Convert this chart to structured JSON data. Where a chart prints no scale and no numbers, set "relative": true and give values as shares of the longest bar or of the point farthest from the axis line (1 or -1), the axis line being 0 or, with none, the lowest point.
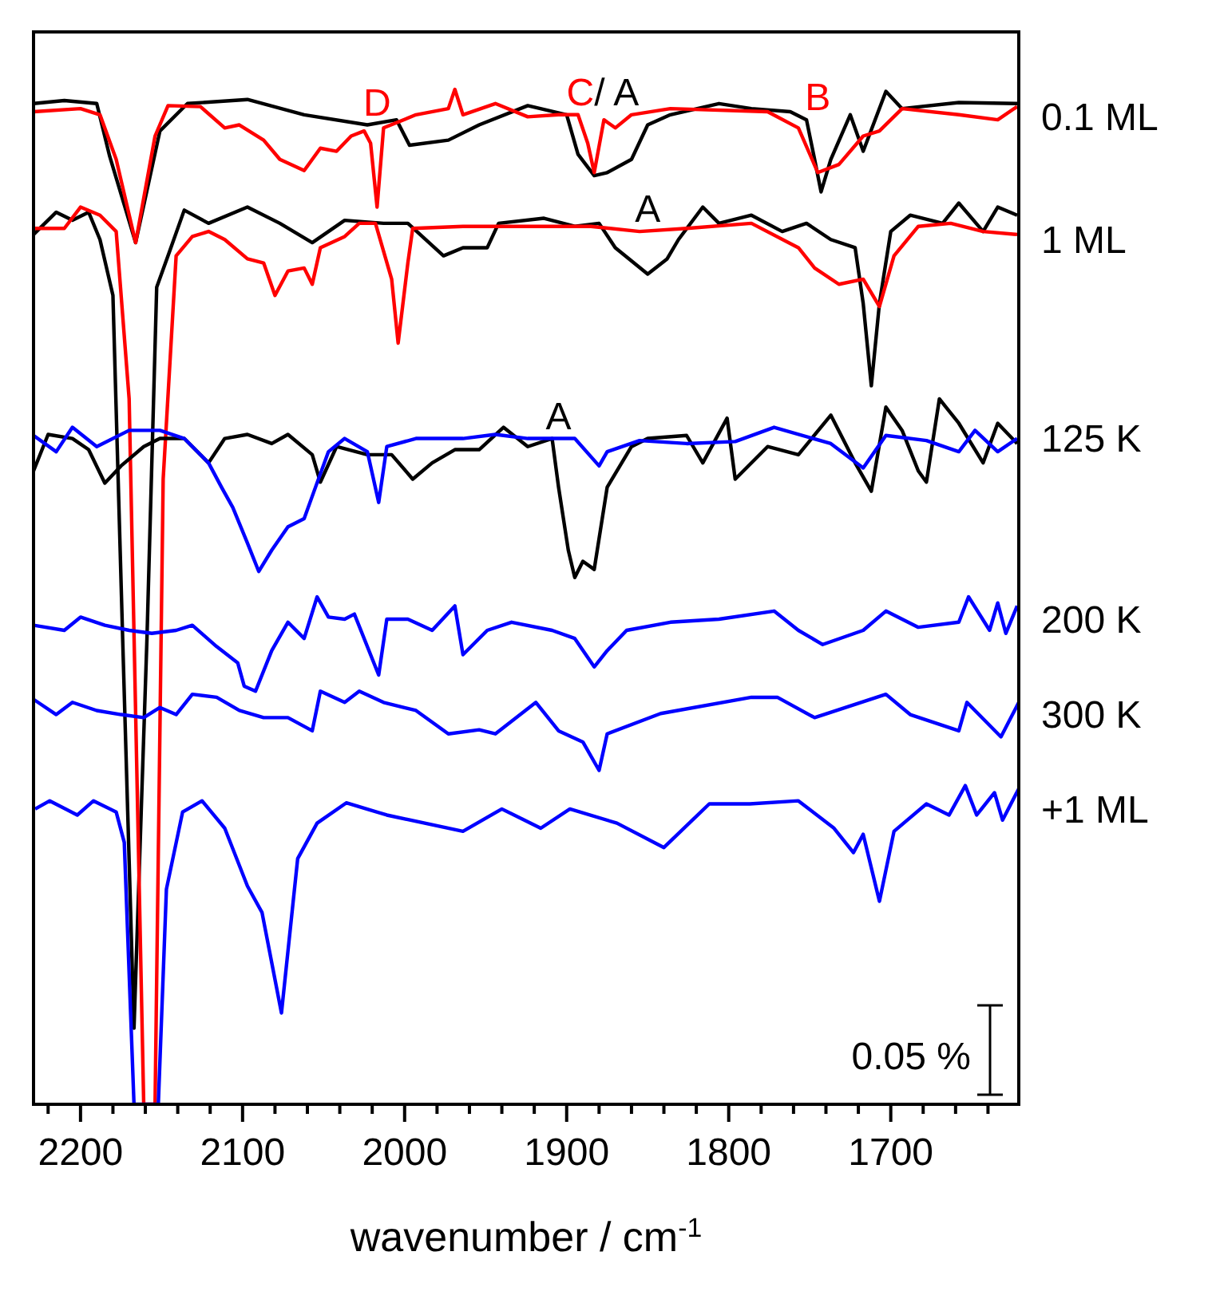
{
  "chart_data": {
    "type": "line",
    "relative": true,
    "xlabel": "wavenumber / cm$^{-1}$",
    "xlim": [
      2229,
      1621
    ],
    "xticks": [
      {
        "value": 2220,
        "label": null
      },
      2200,
      {
        "value": 2180,
        "label": null
      },
      {
        "value": 2160,
        "label": null
      },
      {
        "value": 2140,
        "label": null
      },
      {
        "value": 2120,
        "label": null
      },
      2100,
      {
        "value": 2080,
        "label": null
      },
      {
        "value": 2060,
        "label": null
      },
      {
        "value": 2040,
        "label": null
      },
      {
        "value": 2020,
        "label": null
      },
      2000,
      {
        "value": 1980,
        "label": null
      },
      {
        "value": 1960,
        "label": null
      },
      {
        "value": 1940,
        "label": null
      },
      {
        "value": 1920,
        "label": null
      },
      1900,
      {
        "value": 1880,
        "label": null
      },
      {
        "value": 1860,
        "label": null
      },
      {
        "value": 1840,
        "label": null
      },
      {
        "value": 1820,
        "label": null
      },
      1800,
      {
        "value": 1780,
        "label": null
      },
      {
        "value": 1760,
        "label": null
      },
      {
        "value": 1740,
        "label": null
      },
      {
        "value": 1720,
        "label": null
      },
      1700,
      {
        "value": 1680,
        "label": null
      },
      {
        "value": 1660,
        "label": null
      },
      {
        "value": 1640,
        "label": null
      }
    ],
    "grid": false,
    "line_style": "solid",
    "series": [
      {
        "color": "#000000",
        "x": [
          2229,
          2210,
          2190,
          2182,
          2166,
          2151,
          2134,
          2097,
          2062,
          2023,
          2005,
          1997,
          1973,
          1954,
          1924,
          1900,
          1893,
          1883,
          1875,
          1860,
          1850,
          1836,
          1806,
          1786,
          1762,
          1752,
          1747,
          1743,
          1737,
          1725,
          1717,
          1703,
          1693,
          1658,
          1622
        ],
        "values": [
          0.986,
          0.989,
          0.986,
          0.934,
          0.849,
          0.959,
          0.986,
          0.99,
          0.975,
          0.965,
          0.97,
          0.945,
          0.95,
          0.965,
          0.984,
          0.975,
          0.936,
          0.915,
          0.918,
          0.931,
          0.965,
          0.975,
          0.986,
          0.981,
          0.978,
          0.97,
          0.931,
          0.899,
          0.931,
          0.975,
          0.939,
          0.998,
          0.981,
          0.987,
          0.986
        ]
      },
      {
        "color": "#ff0000",
        "x": [
          2229,
          2200,
          2188,
          2178,
          2166,
          2154,
          2146,
          2126,
          2111,
          2102,
          2087,
          2077,
          2062,
          2052,
          2042,
          2033,
          2025,
          2021,
          2017,
          2013,
          1993,
          1973,
          1969,
          1964,
          1944,
          1924,
          1905,
          1893,
          1887,
          1883,
          1877,
          1870,
          1860,
          1836,
          1776,
          1757,
          1745,
          1732,
          1717,
          1707,
          1693,
          1658,
          1634,
          1622
        ],
        "values": [
          0.978,
          0.981,
          0.975,
          0.931,
          0.849,
          0.954,
          0.984,
          0.983,
          0.962,
          0.965,
          0.95,
          0.931,
          0.92,
          0.942,
          0.939,
          0.954,
          0.959,
          0.947,
          0.884,
          0.962,
          0.975,
          0.981,
          1,
          0.975,
          0.986,
          0.973,
          0.975,
          0.975,
          0.947,
          0.918,
          0.97,
          0.962,
          0.975,
          0.981,
          0.978,
          0.962,
          0.918,
          0.926,
          0.954,
          0.959,
          0.981,
          0.975,
          0.97,
          0.983
        ]
      },
      {
        "color": "#000000",
        "x": [
          2229,
          2215,
          2205,
          2195,
          2188,
          2180,
          2174,
          2167,
          2159,
          2153,
          2146,
          2136,
          2121,
          2097,
          2077,
          2057,
          2037,
          2013,
          1998,
          1976,
          1964,
          1949,
          1942,
          1914,
          1895,
          1880,
          1870,
          1850,
          1838,
          1831,
          1816,
          1806,
          1786,
          1767,
          1752,
          1737,
          1722,
          1717,
          1712,
          1707,
          1700,
          1688,
          1668,
          1658,
          1643,
          1634,
          1622
        ],
        "values": [
          0.857,
          0.879,
          0.871,
          0.879,
          0.852,
          0.797,
          0.459,
          0.075,
          0.459,
          0.805,
          0.836,
          0.881,
          0.868,
          0.884,
          0.868,
          0.849,
          0.871,
          0.868,
          0.868,
          0.836,
          0.844,
          0.844,
          0.868,
          0.873,
          0.865,
          0.868,
          0.844,
          0.818,
          0.833,
          0.852,
          0.884,
          0.868,
          0.876,
          0.86,
          0.868,
          0.852,
          0.844,
          0.789,
          0.708,
          0.789,
          0.86,
          0.876,
          0.868,
          0.888,
          0.86,
          0.884,
          0.876
        ]
      },
      {
        "color": "#ff0000",
        "x": [
          2229,
          2210,
          2200,
          2188,
          2178,
          2170,
          2161,
          2154,
          2149,
          2141,
          2131,
          2121,
          2111,
          2097,
          2087,
          2080,
          2072,
          2062,
          2057,
          2052,
          2037,
          2028,
          2018,
          2008,
          2004,
          1998,
          1995,
          1964,
          1924,
          1885,
          1855,
          1826,
          1786,
          1757,
          1747,
          1732,
          1717,
          1707,
          1698,
          1683,
          1663,
          1643,
          1622
        ],
        "values": [
          0.863,
          0.863,
          0.884,
          0.876,
          0.86,
          0.695,
          0,
          0,
          0.616,
          0.836,
          0.855,
          0.86,
          0.852,
          0.833,
          0.829,
          0.797,
          0.821,
          0.824,
          0.808,
          0.844,
          0.855,
          0.868,
          0.868,
          0.813,
          0.75,
          0.829,
          0.863,
          0.865,
          0.865,
          0.865,
          0.86,
          0.863,
          0.868,
          0.844,
          0.824,
          0.808,
          0.813,
          0.786,
          0.836,
          0.865,
          0.868,
          0.86,
          0.857
        ]
      },
      {
        "color": "#000000",
        "x": [
          2229,
          2220,
          2205,
          2195,
          2185,
          2175,
          2161,
          2151,
          2136,
          2121,
          2111,
          2097,
          2082,
          2072,
          2057,
          2052,
          2042,
          2023,
          2008,
          1995,
          1983,
          1969,
          1954,
          1939,
          1924,
          1909,
          1905,
          1899,
          1895,
          1890,
          1883,
          1875,
          1860,
          1850,
          1826,
          1816,
          1801,
          1796,
          1776,
          1757,
          1737,
          1722,
          1712,
          1703,
          1693,
          1683,
          1678,
          1670,
          1658,
          1643,
          1634,
          1622
        ],
        "values": [
          0.624,
          0.66,
          0.656,
          0.645,
          0.612,
          0.629,
          0.648,
          0.656,
          0.656,
          0.632,
          0.656,
          0.66,
          0.651,
          0.66,
          0.64,
          0.613,
          0.648,
          0.64,
          0.64,
          0.616,
          0.632,
          0.645,
          0.645,
          0.667,
          0.648,
          0.656,
          0.608,
          0.546,
          0.519,
          0.535,
          0.527,
          0.608,
          0.648,
          0.656,
          0.659,
          0.632,
          0.676,
          0.616,
          0.648,
          0.64,
          0.679,
          0.632,
          0.604,
          0.687,
          0.664,
          0.624,
          0.613,
          0.695,
          0.671,
          0.632,
          0.671,
          0.651
        ]
      },
      {
        "color": "#0000ff",
        "x": [
          2229,
          2215,
          2205,
          2190,
          2170,
          2151,
          2136,
          2121,
          2113,
          2106,
          2097,
          2090,
          2082,
          2072,
          2062,
          2055,
          2047,
          2037,
          2023,
          2016,
          2011,
          1993,
          1964,
          1944,
          1924,
          1909,
          1895,
          1880,
          1875,
          1855,
          1826,
          1796,
          1772,
          1737,
          1717,
          1703,
          1678,
          1658,
          1648,
          1634,
          1622
        ],
        "values": [
          0.659,
          0.643,
          0.667,
          0.648,
          0.664,
          0.664,
          0.656,
          0.632,
          0.608,
          0.588,
          0.553,
          0.525,
          0.546,
          0.569,
          0.577,
          0.608,
          0.643,
          0.656,
          0.643,
          0.593,
          0.648,
          0.656,
          0.656,
          0.66,
          0.656,
          0.656,
          0.656,
          0.629,
          0.643,
          0.654,
          0.651,
          0.653,
          0.667,
          0.651,
          0.627,
          0.659,
          0.654,
          0.643,
          0.664,
          0.643,
          0.656
        ]
      },
      {
        "color": "#0000ff",
        "x": [
          2229,
          2210,
          2200,
          2185,
          2170,
          2156,
          2141,
          2131,
          2116,
          2103,
          2099,
          2092,
          2082,
          2072,
          2062,
          2054,
          2047,
          2037,
          2031,
          2016,
          2011,
          1998,
          1983,
          1969,
          1964,
          1949,
          1934,
          1909,
          1895,
          1883,
          1875,
          1863,
          1836,
          1806,
          1772,
          1757,
          1742,
          1717,
          1703,
          1683,
          1658,
          1652,
          1639,
          1634,
          1629,
          1622
        ],
        "values": [
          0.472,
          0.467,
          0.48,
          0.472,
          0.467,
          0.464,
          0.467,
          0.472,
          0.451,
          0.435,
          0.412,
          0.407,
          0.447,
          0.475,
          0.459,
          0.5,
          0.48,
          0.478,
          0.483,
          0.423,
          0.478,
          0.478,
          0.467,
          0.491,
          0.443,
          0.467,
          0.475,
          0.467,
          0.459,
          0.431,
          0.447,
          0.467,
          0.475,
          0.478,
          0.486,
          0.467,
          0.453,
          0.467,
          0.486,
          0.47,
          0.475,
          0.5,
          0.467,
          0.494,
          0.464,
          0.491
        ]
      },
      {
        "color": "#0000ff",
        "x": [
          2229,
          2215,
          2205,
          2190,
          2175,
          2161,
          2151,
          2141,
          2131,
          2116,
          2102,
          2087,
          2072,
          2057,
          2052,
          2037,
          2028,
          2013,
          1993,
          1973,
          1954,
          1944,
          1919,
          1905,
          1890,
          1880,
          1875,
          1842,
          1786,
          1770,
          1747,
          1703,
          1688,
          1658,
          1653,
          1632,
          1621
        ],
        "values": [
          0.399,
          0.384,
          0.396,
          0.388,
          0.384,
          0.381,
          0.391,
          0.384,
          0.404,
          0.401,
          0.388,
          0.381,
          0.381,
          0.368,
          0.407,
          0.396,
          0.407,
          0.396,
          0.388,
          0.365,
          0.369,
          0.365,
          0.396,
          0.368,
          0.357,
          0.329,
          0.365,
          0.385,
          0.401,
          0.401,
          0.381,
          0.404,
          0.384,
          0.368,
          0.396,
          0.362,
          0.396
        ]
      },
      {
        "color": "#0000ff",
        "x": [
          2228,
          2219,
          2202,
          2192,
          2178,
          2173,
          2167,
          2152,
          2147,
          2137,
          2125,
          2111,
          2097,
          2088,
          2076,
          2066,
          2054,
          2036,
          2011,
          1964,
          1940,
          1916,
          1898,
          1869,
          1840,
          1812,
          1787,
          1757,
          1735,
          1723,
          1717,
          1707,
          1698,
          1678,
          1664,
          1654,
          1647,
          1636,
          1631,
          1621
        ],
        "values": [
          0.291,
          0.299,
          0.285,
          0.299,
          0.288,
          0.258,
          0,
          0,
          0.212,
          0.288,
          0.299,
          0.272,
          0.215,
          0.189,
          0.09,
          0.242,
          0.277,
          0.297,
          0.285,
          0.269,
          0.291,
          0.272,
          0.291,
          0.277,
          0.253,
          0.296,
          0.296,
          0.299,
          0.272,
          0.248,
          0.266,
          0.2,
          0.269,
          0.296,
          0.285,
          0.314,
          0.285,
          0.307,
          0.28,
          0.311
        ]
      }
    ],
    "annotations": [
      {
        "text": "D",
        "x": 2017,
        "y": 0.884
      },
      {
        "text": "C",
        "x": 1883,
        "y": 0.918
      },
      {
        "text": "/ A",
        "x": 1883,
        "y": 0.915
      },
      {
        "text": "B",
        "x": 1745,
        "y": 0.918
      },
      {
        "text": "A",
        "x": 1850,
        "y": 0.818
      },
      {
        "text": "A",
        "x": 1905,
        "y": 0.608
      },
      {
        "text": "0.1 ML",
        "x": 1621,
        "y": 0.973
      },
      {
        "text": "1 ML",
        "x": 1621,
        "y": 0.852
      },
      {
        "text": "125 K",
        "x": 1621,
        "y": 0.656
      },
      {
        "text": "200 K",
        "x": 1621,
        "y": 0.478
      },
      {
        "text": "300 K",
        "x": 1621,
        "y": 0.384
      },
      {
        "text": "+1 ML",
        "x": 1621,
        "y": 0.291
      },
      "0.05 %"
    ]
  }
}
